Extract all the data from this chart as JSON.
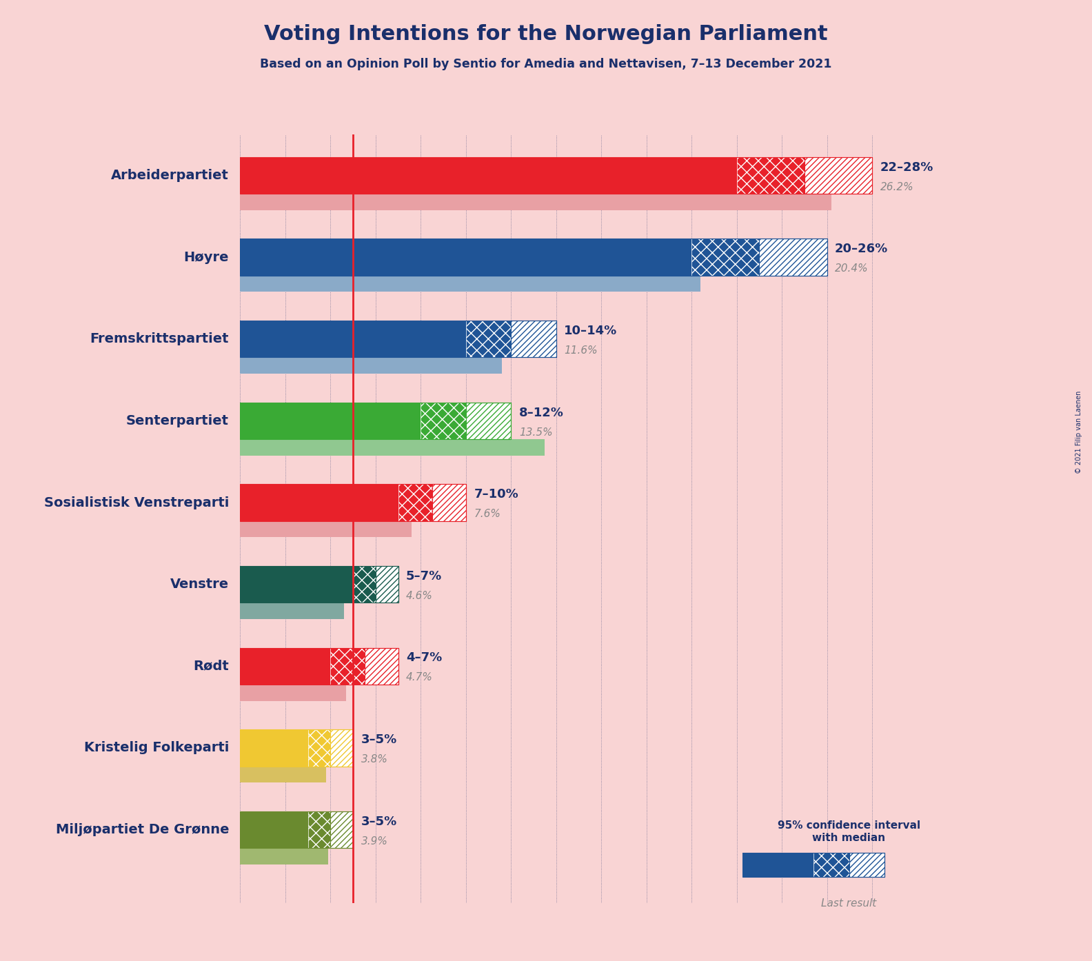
{
  "title": "Voting Intentions for the Norwegian Parliament",
  "subtitle": "Based on an Opinion Poll by Sentio for Amedia and Nettavisen, 7–13 December 2021",
  "copyright": "© 2021 Filip van Laenen",
  "background_color": "#f9d4d4",
  "title_color": "#1a2f6b",
  "parties": [
    "Arbeiderpartiet",
    "Høyre",
    "Fremskrittspartiet",
    "Senterpartiet",
    "Sosialistisk Venstreparti",
    "Venstre",
    "Rødt",
    "Kristelig Folkeparti",
    "Miljøpartiet De Grønne"
  ],
  "colors": [
    "#e8212a",
    "#1f5496",
    "#1f5496",
    "#3aaa35",
    "#e8212a",
    "#1a5b4e",
    "#e8212a",
    "#f0c832",
    "#6a8a2f"
  ],
  "ci_low": [
    22,
    20,
    10,
    8,
    7,
    5,
    4,
    3,
    3
  ],
  "ci_high": [
    28,
    26,
    14,
    12,
    10,
    7,
    7,
    5,
    5
  ],
  "median": [
    25,
    23,
    12,
    10,
    8.5,
    6,
    5.5,
    4,
    4
  ],
  "last_result": [
    26.2,
    20.4,
    11.6,
    13.5,
    7.6,
    4.6,
    4.7,
    3.8,
    3.9
  ],
  "label_range": [
    "22–28%",
    "20–26%",
    "10–14%",
    "8–12%",
    "7–10%",
    "5–7%",
    "4–7%",
    "3–5%",
    "3–5%"
  ],
  "label_last": [
    "26.2%",
    "20.4%",
    "11.6%",
    "13.5%",
    "7.6%",
    "4.6%",
    "4.7%",
    "3.8%",
    "3.9%"
  ],
  "last_result_colors": [
    "#e8a0a4",
    "#8aaac8",
    "#8aaac8",
    "#90c890",
    "#e8a0a4",
    "#80a8a0",
    "#e8a0a4",
    "#d8c060",
    "#a0b870"
  ],
  "red_line_x": 5.0,
  "x_max": 30
}
